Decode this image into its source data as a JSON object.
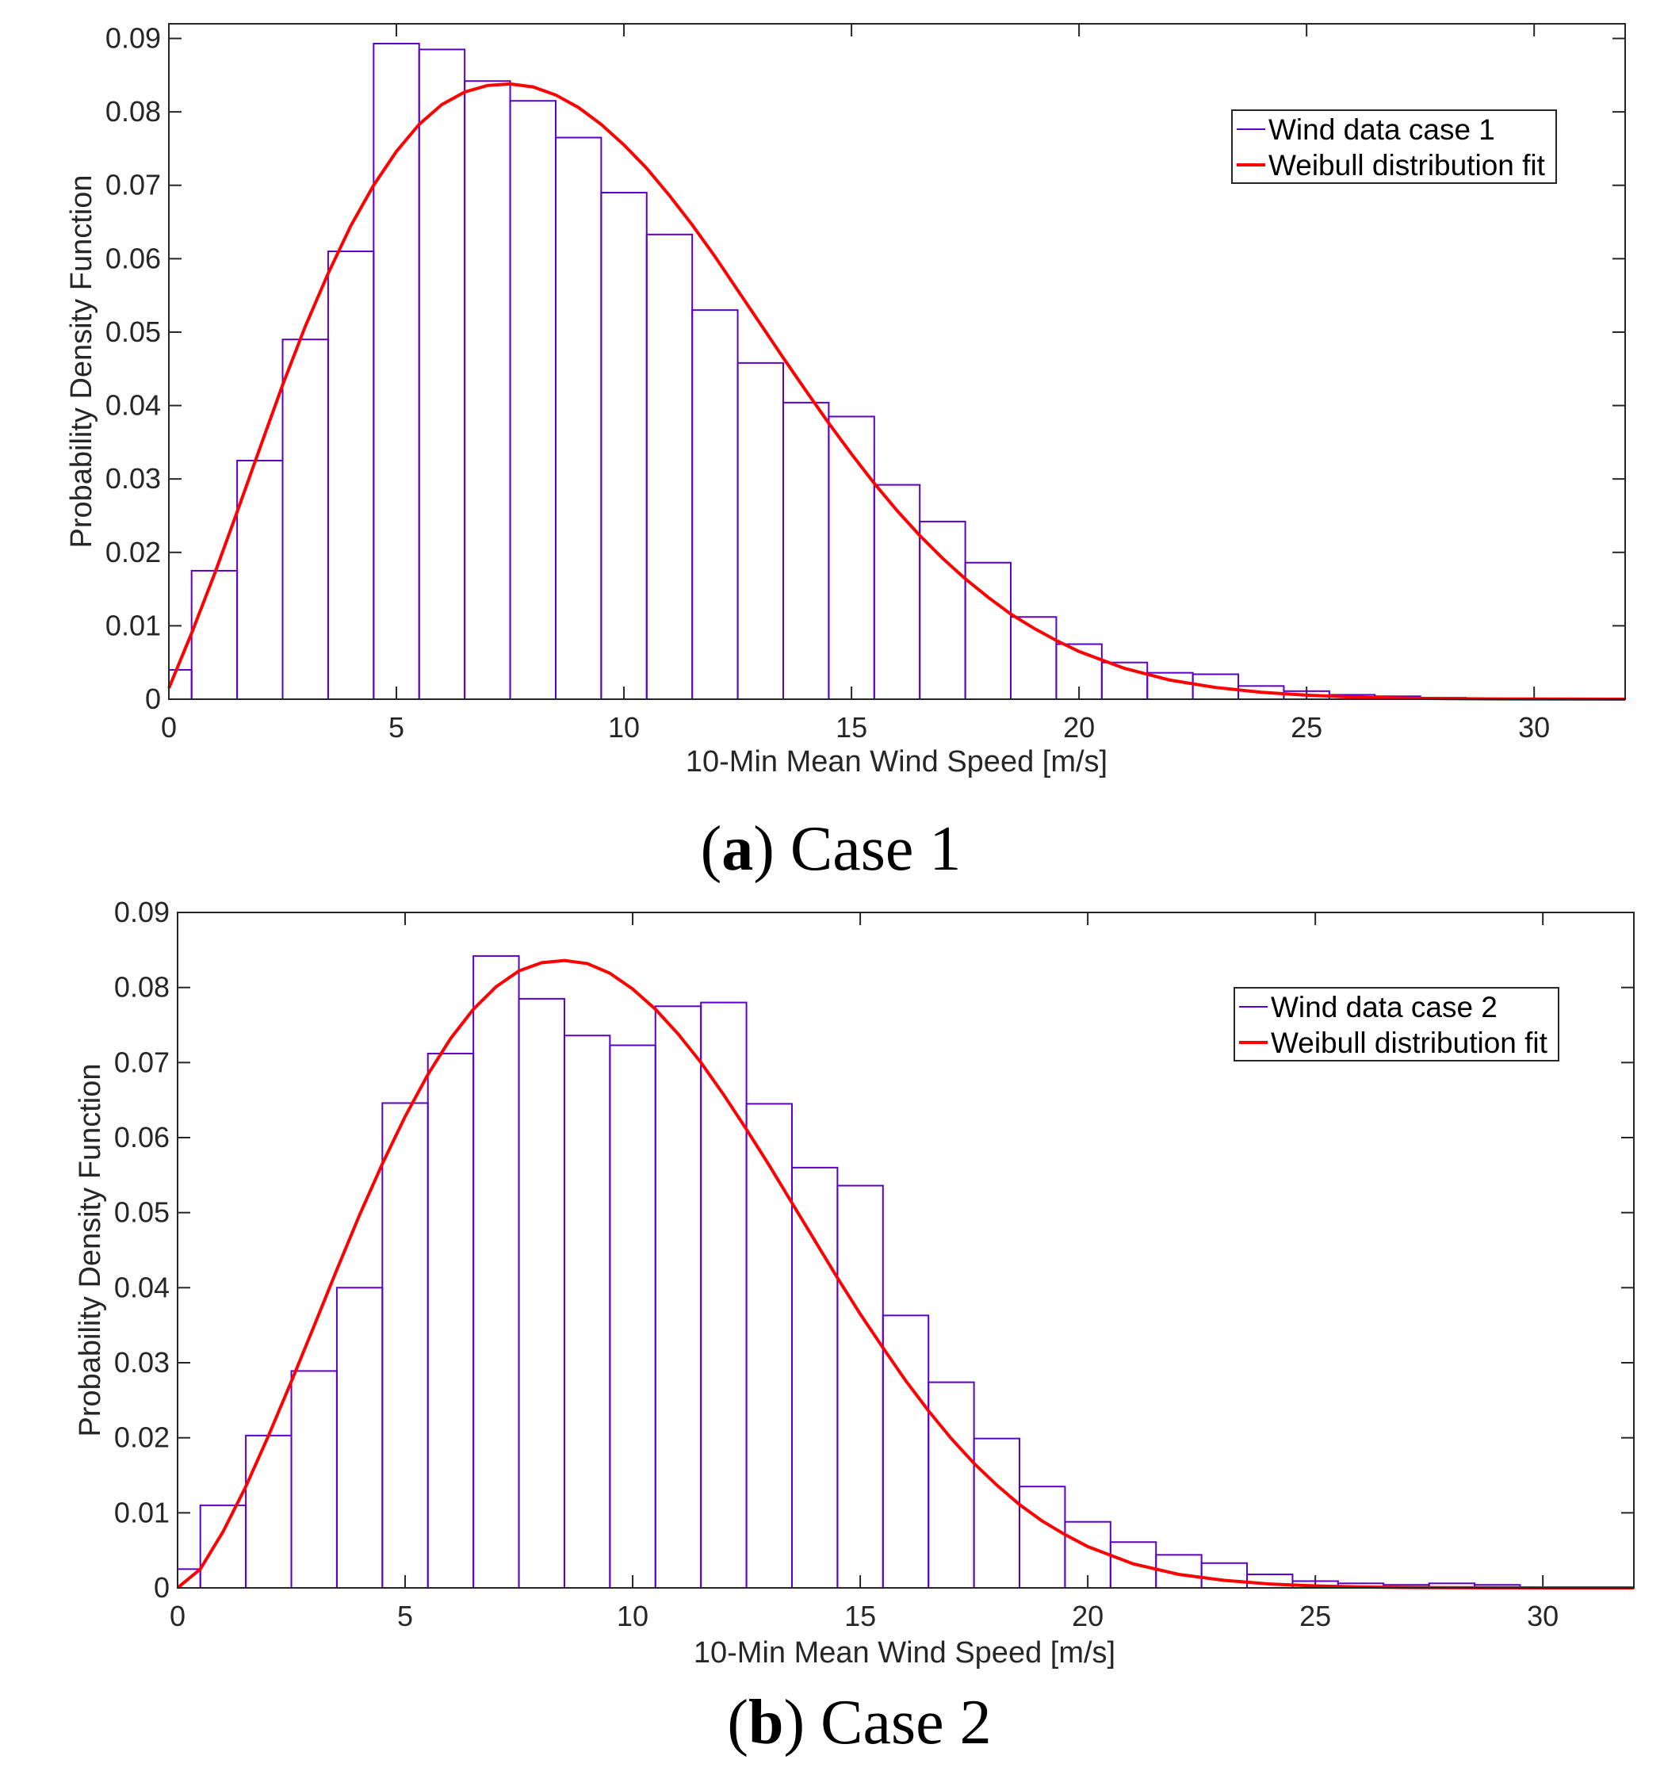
{
  "colors": {
    "bars": "#5b00c7",
    "fit": "#ff0000",
    "axes": "#262626",
    "background": "#ffffff"
  },
  "chart_data": [
    {
      "type": "bar",
      "caption_letter": "a",
      "caption_text": "Case 1",
      "xlabel": "10-Min Mean Wind Speed [m/s]",
      "ylabel": "Probability Density Function",
      "xlim": [
        0,
        32
      ],
      "ylim": [
        0,
        0.092
      ],
      "xticks": [
        "0",
        "5",
        "10",
        "15",
        "20",
        "25",
        "30"
      ],
      "yticks": [
        "0",
        "0.01",
        "0.02",
        "0.03",
        "0.04",
        "0.05",
        "0.06",
        "0.07",
        "0.08",
        "0.09"
      ],
      "legend_position": "top-right",
      "series": [
        {
          "name": "Wind data case 1",
          "kind": "histogram",
          "bin_edges": [
            0,
            0.5,
            1.5,
            2.5,
            3.5,
            4.5,
            5.5,
            6.5,
            7.5,
            8.5,
            9.5,
            10.5,
            11.5,
            12.5,
            13.5,
            14.5,
            15.5,
            16.5,
            17.5,
            18.5,
            19.5,
            20.5,
            21.5,
            22.5,
            23.5,
            24.5,
            25.5,
            26.5,
            27.5,
            28.5,
            29.5
          ],
          "values": [
            0.004,
            0.0175,
            0.0325,
            0.049,
            0.061,
            0.0893,
            0.0885,
            0.0842,
            0.0815,
            0.0765,
            0.069,
            0.0633,
            0.053,
            0.0458,
            0.0404,
            0.0385,
            0.0292,
            0.0242,
            0.0186,
            0.0112,
            0.0075,
            0.005,
            0.0036,
            0.0034,
            0.0018,
            0.0011,
            0.0006,
            0.0004,
            0.0002,
            0.0001
          ]
        },
        {
          "name": "Weibull distribution fit",
          "kind": "line",
          "x": [
            0,
            0.5,
            1,
            1.5,
            2,
            2.5,
            3,
            3.5,
            4,
            4.5,
            5,
            5.5,
            6,
            6.5,
            7,
            7.5,
            8,
            8.5,
            9,
            9.5,
            10,
            10.5,
            11,
            11.5,
            12,
            12.5,
            13,
            13.5,
            14,
            14.5,
            15,
            15.5,
            16,
            16.5,
            17,
            17.5,
            18,
            18.5,
            19,
            19.5,
            20,
            21,
            22,
            23,
            24,
            25,
            26,
            27,
            28,
            29,
            30,
            31,
            32
          ],
          "y": [
            0.0015,
            0.009,
            0.017,
            0.0255,
            0.0342,
            0.0428,
            0.0508,
            0.058,
            0.0645,
            0.07,
            0.0746,
            0.0783,
            0.081,
            0.0827,
            0.0836,
            0.0838,
            0.0834,
            0.0823,
            0.0806,
            0.0783,
            0.0755,
            0.0723,
            0.0686,
            0.0646,
            0.0603,
            0.0557,
            0.0511,
            0.0465,
            0.042,
            0.0376,
            0.0334,
            0.0294,
            0.0257,
            0.0223,
            0.0192,
            0.0164,
            0.0139,
            0.0116,
            0.0097,
            0.008,
            0.0065,
            0.0042,
            0.0026,
            0.0016,
            0.00095,
            0.00055,
            0.0003,
            0.00016,
            8e-05,
            4e-05,
            2e-05,
            1e-05,
            5e-06
          ]
        }
      ]
    },
    {
      "type": "bar",
      "caption_letter": "b",
      "caption_text": "Case 2",
      "xlabel": "10-Min Mean Wind Speed [m/s]",
      "ylabel": "Probability Density Function",
      "xlim": [
        0,
        32
      ],
      "ylim": [
        0,
        0.09
      ],
      "xticks": [
        "0",
        "5",
        "10",
        "15",
        "20",
        "25",
        "30"
      ],
      "yticks": [
        "0",
        "0.01",
        "0.02",
        "0.03",
        "0.04",
        "0.05",
        "0.06",
        "0.07",
        "0.08",
        "0.09"
      ],
      "legend_position": "top-right",
      "series": [
        {
          "name": "Wind data case 2",
          "kind": "histogram",
          "bin_edges": [
            0,
            0.5,
            1.5,
            2.5,
            3.5,
            4.5,
            5.5,
            6.5,
            7.5,
            8.5,
            9.5,
            10.5,
            11.5,
            12.5,
            13.5,
            14.5,
            15.5,
            16.5,
            17.5,
            18.5,
            19.5,
            20.5,
            21.5,
            22.5,
            23.5,
            24.5,
            25.5,
            26.5,
            27.5,
            28.5,
            29.5
          ],
          "values": [
            0.0025,
            0.011,
            0.0203,
            0.0289,
            0.04,
            0.0646,
            0.0712,
            0.0842,
            0.0785,
            0.0736,
            0.0723,
            0.0775,
            0.078,
            0.0645,
            0.056,
            0.0536,
            0.0363,
            0.0274,
            0.0199,
            0.0135,
            0.0088,
            0.0061,
            0.0044,
            0.0033,
            0.0018,
            0.0009,
            0.0006,
            0.0004,
            0.0006,
            0.0004
          ]
        },
        {
          "name": "Weibull distribution fit",
          "kind": "line",
          "x": [
            0,
            0.5,
            1,
            1.5,
            2,
            2.5,
            3,
            3.5,
            4,
            4.5,
            5,
            5.5,
            6,
            6.5,
            7,
            7.5,
            8,
            8.5,
            9,
            9.5,
            10,
            10.5,
            11,
            11.5,
            12,
            12.5,
            13,
            13.5,
            14,
            14.5,
            15,
            15.5,
            16,
            16.5,
            17,
            17.5,
            18,
            18.5,
            19,
            19.5,
            20,
            21,
            22,
            23,
            24,
            25,
            26,
            27,
            28,
            29,
            30,
            31,
            32
          ],
          "y": [
            0.0,
            0.0025,
            0.0075,
            0.0135,
            0.0203,
            0.0275,
            0.0349,
            0.0424,
            0.0497,
            0.0565,
            0.0628,
            0.0684,
            0.0732,
            0.0771,
            0.0801,
            0.0822,
            0.0833,
            0.0836,
            0.0832,
            0.0819,
            0.0798,
            0.0771,
            0.0738,
            0.07,
            0.0657,
            0.0611,
            0.0563,
            0.0513,
            0.0463,
            0.0413,
            0.0365,
            0.032,
            0.0276,
            0.0236,
            0.0199,
            0.0166,
            0.0137,
            0.0111,
            0.0089,
            0.0071,
            0.0055,
            0.0032,
            0.0018,
            0.001,
            0.00052,
            0.00026,
            0.00012,
            5e-05,
            2e-05,
            1e-05,
            4e-06,
            1e-06,
            0.0
          ]
        }
      ]
    }
  ]
}
